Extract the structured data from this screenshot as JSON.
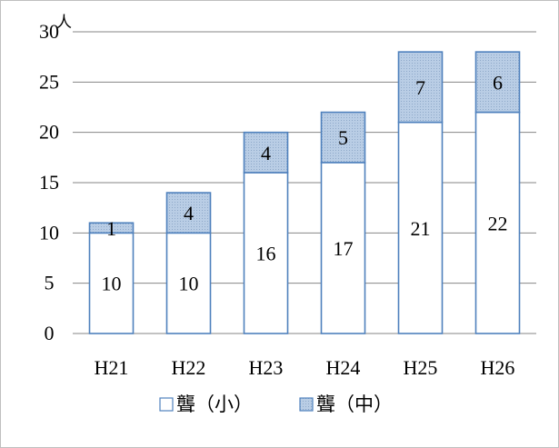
{
  "chart_data": {
    "type": "bar",
    "stacked": true,
    "unit_label": "人",
    "categories": [
      "H21",
      "H22",
      "H23",
      "H24",
      "H25",
      "H26"
    ],
    "series": [
      {
        "name": "聾（小）",
        "values": [
          10,
          10,
          16,
          17,
          21,
          22
        ],
        "color": "#ffffff",
        "stroke": "#4f81bd"
      },
      {
        "name": "聾（中）",
        "values": [
          1,
          4,
          4,
          5,
          7,
          6
        ],
        "color": "#b9cde5",
        "stroke": "#4f81bd"
      }
    ],
    "ylim": [
      0,
      30
    ],
    "yticks": [
      0,
      5,
      10,
      15,
      20,
      25,
      30
    ],
    "grid": true,
    "legend_position": "bottom",
    "colors": {
      "gridline": "#868686",
      "bar_border": "#4f81bd",
      "stacked_fill": "#b9cde5"
    }
  }
}
